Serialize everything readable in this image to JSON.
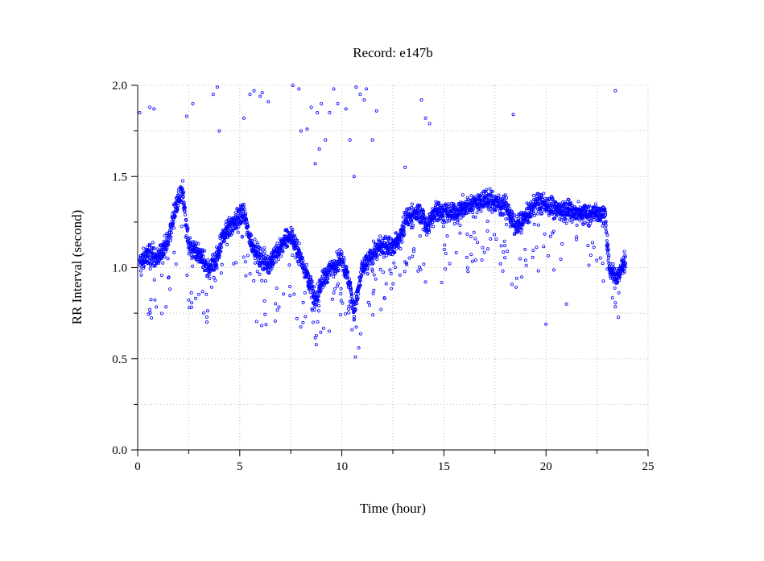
{
  "chart_data": {
    "type": "scatter",
    "title": "Record:  e147b",
    "xlabel": "Time (hour)",
    "ylabel": "RR Interval (second)",
    "xlim": [
      0,
      25
    ],
    "ylim": [
      0,
      2.0
    ],
    "xticks": [
      0,
      5,
      10,
      15,
      20,
      25
    ],
    "xtick_labels": [
      "0",
      "5",
      "10",
      "15",
      "20",
      "25"
    ],
    "yticks": [
      0,
      0.5,
      1.0,
      1.5,
      2.0
    ],
    "ytick_labels": [
      "0.0",
      "0.5",
      "1.0",
      "1.5",
      "2.0"
    ],
    "grid": true,
    "marker_color": "#0000ff",
    "series": [
      {
        "trend": [
          [
            0.1,
            1.02
          ],
          [
            0.5,
            1.08
          ],
          [
            1.0,
            1.05
          ],
          [
            1.5,
            1.15
          ],
          [
            1.9,
            1.35
          ],
          [
            2.2,
            1.42
          ],
          [
            2.5,
            1.12
          ],
          [
            3.0,
            1.08
          ],
          [
            3.5,
            0.98
          ],
          [
            3.9,
            1.05
          ],
          [
            4.2,
            1.18
          ],
          [
            4.7,
            1.25
          ],
          [
            5.2,
            1.3
          ],
          [
            5.5,
            1.15
          ],
          [
            6.0,
            1.05
          ],
          [
            6.5,
            1.02
          ],
          [
            7.0,
            1.12
          ],
          [
            7.5,
            1.18
          ],
          [
            8.0,
            1.05
          ],
          [
            8.5,
            0.9
          ],
          [
            8.7,
            0.8
          ],
          [
            9.0,
            0.92
          ],
          [
            9.5,
            1.0
          ],
          [
            10.0,
            1.05
          ],
          [
            10.4,
            0.9
          ],
          [
            10.6,
            0.75
          ],
          [
            11.0,
            1.0
          ],
          [
            11.5,
            1.08
          ],
          [
            12.0,
            1.12
          ],
          [
            12.5,
            1.12
          ],
          [
            12.8,
            1.15
          ],
          [
            13.2,
            1.28
          ],
          [
            13.8,
            1.3
          ],
          [
            14.2,
            1.22
          ],
          [
            14.6,
            1.32
          ],
          [
            15.0,
            1.3
          ],
          [
            15.5,
            1.3
          ],
          [
            16.0,
            1.33
          ],
          [
            16.5,
            1.35
          ],
          [
            17.0,
            1.38
          ],
          [
            17.5,
            1.36
          ],
          [
            18.0,
            1.34
          ],
          [
            18.5,
            1.22
          ],
          [
            19.0,
            1.28
          ],
          [
            19.5,
            1.35
          ],
          [
            20.0,
            1.35
          ],
          [
            20.5,
            1.32
          ],
          [
            21.0,
            1.32
          ],
          [
            21.5,
            1.3
          ],
          [
            22.0,
            1.3
          ],
          [
            22.5,
            1.3
          ],
          [
            22.9,
            1.28
          ],
          [
            23.1,
            1.0
          ],
          [
            23.5,
            0.95
          ],
          [
            23.9,
            1.05
          ]
        ],
        "outliers": [
          [
            0.1,
            1.85
          ],
          [
            0.6,
            1.88
          ],
          [
            0.8,
            1.87
          ],
          [
            2.4,
            1.83
          ],
          [
            2.7,
            1.9
          ],
          [
            3.7,
            1.95
          ],
          [
            3.9,
            1.99
          ],
          [
            4.0,
            1.75
          ],
          [
            5.2,
            1.82
          ],
          [
            5.5,
            1.95
          ],
          [
            5.7,
            1.97
          ],
          [
            6.0,
            1.94
          ],
          [
            6.1,
            1.96
          ],
          [
            6.4,
            1.91
          ],
          [
            7.6,
            2.0
          ],
          [
            7.9,
            1.98
          ],
          [
            8.0,
            1.75
          ],
          [
            8.3,
            1.76
          ],
          [
            8.5,
            1.88
          ],
          [
            8.7,
            1.57
          ],
          [
            8.8,
            1.85
          ],
          [
            8.9,
            1.65
          ],
          [
            9.0,
            1.9
          ],
          [
            9.2,
            1.7
          ],
          [
            9.4,
            1.85
          ],
          [
            9.6,
            1.98
          ],
          [
            9.8,
            1.9
          ],
          [
            10.2,
            1.87
          ],
          [
            10.4,
            1.7
          ],
          [
            10.6,
            1.5
          ],
          [
            10.7,
            1.99
          ],
          [
            10.9,
            1.95
          ],
          [
            11.1,
            1.92
          ],
          [
            11.2,
            1.98
          ],
          [
            11.5,
            1.7
          ],
          [
            11.7,
            1.86
          ],
          [
            13.1,
            1.55
          ],
          [
            13.9,
            1.92
          ],
          [
            14.1,
            1.82
          ],
          [
            14.3,
            1.79
          ],
          [
            18.4,
            1.84
          ],
          [
            20.0,
            0.69
          ],
          [
            23.4,
            1.97
          ],
          [
            7.8,
            0.72
          ],
          [
            8.6,
            0.7
          ],
          [
            10.5,
            0.66
          ],
          [
            19.0,
            1.04
          ],
          [
            21.0,
            0.8
          ]
        ]
      }
    ]
  }
}
